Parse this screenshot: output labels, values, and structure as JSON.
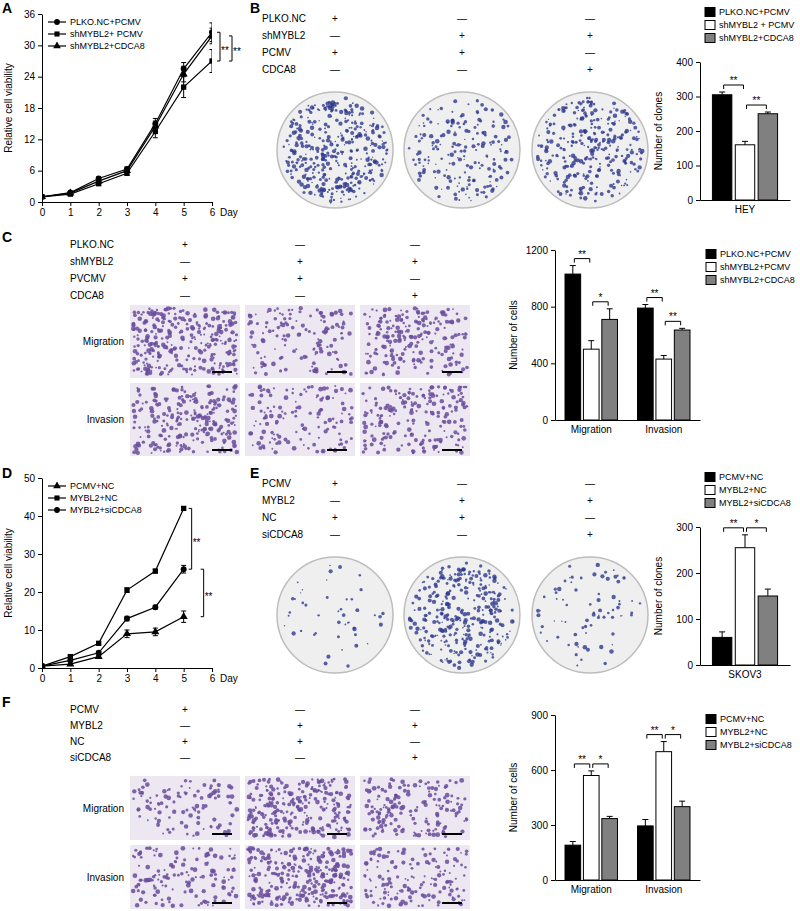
{
  "chart_data": [
    {
      "panel_label": "A",
      "type": "line",
      "y_label": "Relative cell viability",
      "x_label": "Day",
      "x": [
        0,
        1,
        2,
        3,
        4,
        5,
        6
      ],
      "xlim": [
        0,
        6
      ],
      "xticks": [
        0,
        1,
        2,
        3,
        4,
        5,
        6
      ],
      "ylim": [
        0,
        36
      ],
      "yticks": [
        0,
        6,
        12,
        18,
        24,
        30,
        36
      ],
      "legend": "upper left",
      "series": [
        {
          "name": "PLKO.NC+PCMV",
          "color": "#000000",
          "marker": "circle",
          "values": [
            1,
            1.8,
            4.5,
            6.3,
            15,
            25.5,
            32.5
          ],
          "errors": [
            0.1,
            0.2,
            0.3,
            0.4,
            1,
            1.2,
            1.8
          ]
        },
        {
          "name": "shMYBL2+ PCMV",
          "color": "#000000",
          "marker": "square",
          "values": [
            1,
            1.5,
            3.5,
            5.5,
            13.5,
            22,
            27
          ],
          "errors": [
            0.1,
            0.2,
            0.3,
            0.4,
            1.2,
            2,
            2.2
          ]
        },
        {
          "name": "shMYBL2+CDCA8",
          "color": "#000000",
          "marker": "triangle",
          "values": [
            1,
            1.7,
            4,
            6,
            14.5,
            24.5,
            31.8
          ],
          "errors": [
            0.1,
            0.2,
            0.3,
            0.4,
            1,
            1.5,
            1.5
          ]
        }
      ],
      "annotations": [
        {
          "text": "**",
          "series": [
            0,
            1
          ]
        },
        {
          "text": "**",
          "series": [
            1,
            2
          ]
        }
      ]
    },
    {
      "panel_label": "B",
      "type": "bar",
      "conditions": [
        {
          "label": "PLKO.NC",
          "marks": [
            "+",
            "—",
            "—"
          ]
        },
        {
          "label": "shMYBL2",
          "marks": [
            "—",
            "+",
            "+"
          ]
        },
        {
          "label": "PCMV",
          "marks": [
            "+",
            "+",
            "—"
          ]
        },
        {
          "label": "CDCA8",
          "marks": [
            "—",
            "—",
            "+"
          ]
        }
      ],
      "y_label": "Number of clones",
      "categories": [
        "HEY"
      ],
      "ylim": [
        0,
        400
      ],
      "yticks": [
        0,
        100,
        200,
        300,
        400
      ],
      "legend": "top",
      "series": [
        {
          "name": "PLKO.NC+PCMV",
          "color": "#000000",
          "values": [
            305
          ],
          "errors": [
            8
          ]
        },
        {
          "name": "shMYBL2 + PCMV",
          "color": "#ffffff",
          "values": [
            160
          ],
          "errors": [
            10
          ]
        },
        {
          "name": "shMYBL2+CDCA8",
          "color": "#808080",
          "values": [
            250
          ],
          "errors": [
            5
          ]
        }
      ],
      "annotations": [
        {
          "text": "**",
          "category": 0,
          "series": [
            0,
            1
          ]
        },
        {
          "text": "**",
          "category": 0,
          "series": [
            1,
            2
          ]
        }
      ]
    },
    {
      "panel_label": "C",
      "type": "bar",
      "conditions": [
        {
          "label": "PLKO.NC",
          "marks": [
            "+",
            "—",
            "—"
          ]
        },
        {
          "label": "shMYBL2",
          "marks": [
            "—",
            "+",
            "+"
          ]
        },
        {
          "label": "PVCMV",
          "marks": [
            "+",
            "+",
            "—"
          ]
        },
        {
          "label": "CDCA8",
          "marks": [
            "—",
            "—",
            "+"
          ]
        }
      ],
      "image_rows": [
        "Migration",
        "Invasion"
      ],
      "y_label": "Number of cells",
      "categories": [
        "Migration",
        "Invasion"
      ],
      "ylim": [
        0,
        1200
      ],
      "yticks": [
        0,
        400,
        800,
        1200
      ],
      "legend": "right",
      "series": [
        {
          "name": "PLKO.NC+PCMV",
          "color": "#000000",
          "values": [
            1030,
            790
          ],
          "errors": [
            60,
            25
          ]
        },
        {
          "name": "shMYBL2+PCMV",
          "color": "#ffffff",
          "values": [
            500,
            430
          ],
          "errors": [
            60,
            25
          ]
        },
        {
          "name": "shMYBL2+CDCA8",
          "color": "#808080",
          "values": [
            710,
            635
          ],
          "errors": [
            75,
            12
          ]
        }
      ],
      "annotations": [
        {
          "text": "**",
          "category": 0,
          "series": [
            0,
            1
          ]
        },
        {
          "text": "*",
          "category": 0,
          "series": [
            1,
            2
          ]
        },
        {
          "text": "**",
          "category": 1,
          "series": [
            0,
            1
          ]
        },
        {
          "text": "**",
          "category": 1,
          "series": [
            1,
            2
          ]
        }
      ]
    },
    {
      "panel_label": "D",
      "type": "line",
      "y_label": "Relative cell viability",
      "x_label": "Day",
      "x": [
        0,
        1,
        2,
        3,
        4,
        5
      ],
      "xlim": [
        0,
        6
      ],
      "xticks": [
        0,
        1,
        2,
        3,
        4,
        5,
        6
      ],
      "ylim": [
        0,
        50
      ],
      "yticks": [
        0,
        10,
        20,
        30,
        40,
        50
      ],
      "legend": "upper left",
      "series": [
        {
          "name": "PCMV+NC",
          "color": "#000000",
          "marker": "triangle",
          "values": [
            0.5,
            1,
            3,
            9,
            9.5,
            13.5
          ],
          "errors": [
            0.1,
            0.2,
            0.3,
            1,
            1,
            1.5
          ]
        },
        {
          "name": "MYBL2+NC",
          "color": "#000000",
          "marker": "square",
          "values": [
            0.5,
            3,
            6.5,
            20.5,
            25.5,
            42
          ],
          "errors": [
            0.1,
            0.3,
            0.4,
            0.6,
            0.5,
            0.4
          ]
        },
        {
          "name": "MYBL2+siCDCA8",
          "color": "#000000",
          "marker": "circle",
          "values": [
            0.5,
            2,
            4,
            13,
            16,
            26
          ],
          "errors": [
            0.1,
            0.2,
            0.3,
            0.6,
            0.5,
            1
          ]
        }
      ],
      "annotations": [
        {
          "text": "**",
          "series": [
            1,
            2
          ]
        },
        {
          "text": "**",
          "series": [
            2,
            0
          ]
        }
      ]
    },
    {
      "panel_label": "E",
      "type": "bar",
      "conditions": [
        {
          "label": "PCMV",
          "marks": [
            "+",
            "—",
            "—"
          ]
        },
        {
          "label": "MYBL2",
          "marks": [
            "—",
            "+",
            "+"
          ]
        },
        {
          "label": "NC",
          "marks": [
            "+",
            "+",
            "—"
          ]
        },
        {
          "label": "siCDCA8",
          "marks": [
            "—",
            "—",
            "+"
          ]
        }
      ],
      "y_label": "Number of clones",
      "categories": [
        "SKOV3"
      ],
      "ylim": [
        0,
        300
      ],
      "yticks": [
        0,
        100,
        200,
        300
      ],
      "legend": "top",
      "series": [
        {
          "name": "PCMV+NC",
          "color": "#000000",
          "values": [
            60
          ],
          "errors": [
            12
          ]
        },
        {
          "name": "MYBL2+NC",
          "color": "#ffffff",
          "values": [
            255
          ],
          "errors": [
            28
          ]
        },
        {
          "name": "MYBL2+siCDCA8",
          "color": "#808080",
          "values": [
            150
          ],
          "errors": [
            15
          ]
        }
      ],
      "annotations": [
        {
          "text": "**",
          "category": 0,
          "series": [
            0,
            1
          ]
        },
        {
          "text": "*",
          "category": 0,
          "series": [
            1,
            2
          ]
        }
      ]
    },
    {
      "panel_label": "F",
      "type": "bar",
      "conditions": [
        {
          "label": "PCMV",
          "marks": [
            "+",
            "—",
            "—"
          ]
        },
        {
          "label": "MYBL2",
          "marks": [
            "—",
            "+",
            "+"
          ]
        },
        {
          "label": "NC",
          "marks": [
            "+",
            "+",
            "—"
          ]
        },
        {
          "label": "siCDCA8",
          "marks": [
            "—",
            "—",
            "+"
          ]
        }
      ],
      "image_rows": [
        "Migration",
        "Invasion"
      ],
      "y_label": "Number of cells",
      "categories": [
        "Migration",
        "Invasion"
      ],
      "ylim": [
        0,
        900
      ],
      "yticks": [
        0,
        300,
        600,
        900
      ],
      "legend": "right",
      "series": [
        {
          "name": "PCMV+NC",
          "color": "#000000",
          "values": [
            190,
            295
          ],
          "errors": [
            20,
            35
          ]
        },
        {
          "name": "MYBL2+NC",
          "color": "#ffffff",
          "values": [
            570,
            700
          ],
          "errors": [
            25,
            55
          ]
        },
        {
          "name": "MYBL2+siCDCA8",
          "color": "#808080",
          "values": [
            335,
            400
          ],
          "errors": [
            12,
            30
          ]
        }
      ],
      "annotations": [
        {
          "text": "**",
          "category": 0,
          "series": [
            0,
            1
          ]
        },
        {
          "text": "*",
          "category": 0,
          "series": [
            1,
            2
          ]
        },
        {
          "text": "**",
          "category": 1,
          "series": [
            0,
            1
          ]
        },
        {
          "text": "*",
          "category": 1,
          "series": [
            1,
            2
          ]
        }
      ]
    }
  ]
}
